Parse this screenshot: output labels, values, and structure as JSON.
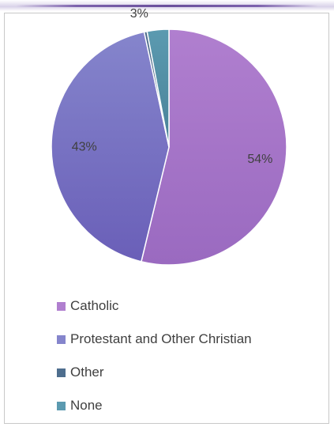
{
  "chart_data": {
    "type": "pie",
    "categories": [
      "Catholic",
      "Protestant and Other Christian",
      "Other",
      "None"
    ],
    "values": [
      54,
      43,
      0.4,
      3
    ],
    "data_labels": [
      "54%",
      "43%",
      "",
      "3%"
    ],
    "colors": [
      "#b07fcf",
      "#8585cc",
      "#4e6e8e",
      "#5b9ab0"
    ],
    "gradient_dark": [
      "#9a6ac0",
      "#6a5fb8",
      "#3f5b78",
      "#4a8298"
    ],
    "legend_placement": "bottom-left",
    "title": ""
  }
}
